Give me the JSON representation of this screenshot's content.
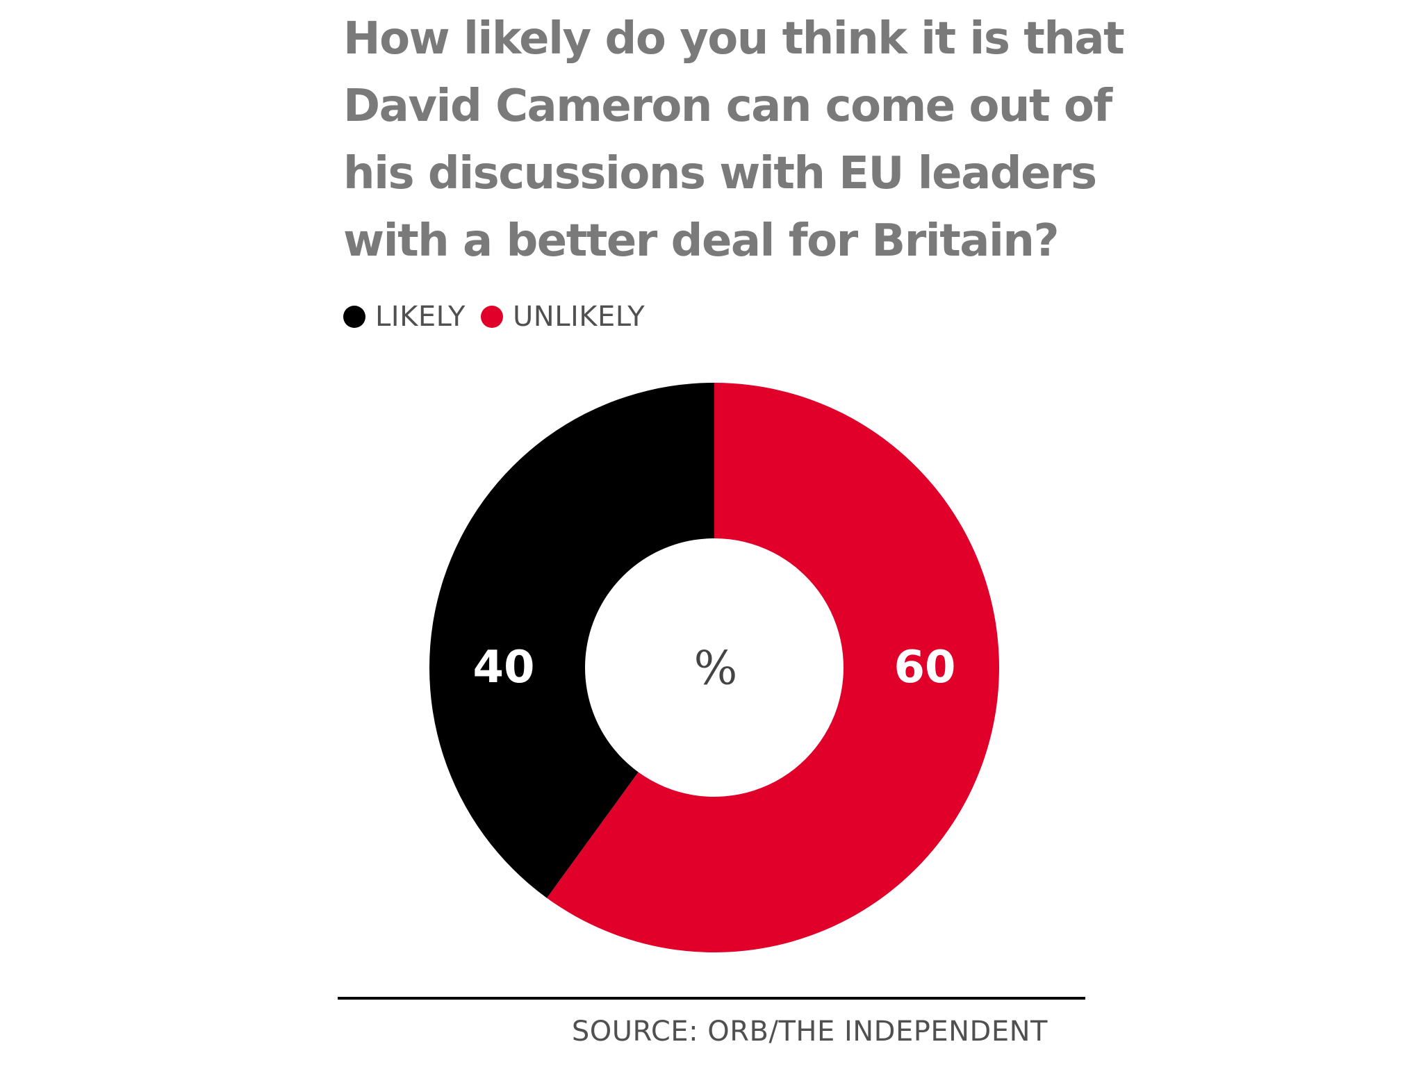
{
  "title_lines": [
    "How likely do you think it is that",
    "David Cameron can come out of",
    "his discussions with EU leaders",
    "with a better deal for Britain?"
  ],
  "source": "SOURCE: ORB/THE INDEPENDENT",
  "colors": {
    "likely": "#000000",
    "unlikely": "#e0002a",
    "title": "#7a7a7a",
    "text": "#505050"
  },
  "chart_data": {
    "type": "pie",
    "style": "donut",
    "title": "How likely do you think it is that David Cameron can come out of his discussions with EU leaders with a better deal for Britain?",
    "unit_label": "%",
    "legend_placement": "top-left",
    "categories": [
      "LIKELY",
      "UNLIKELY"
    ],
    "values": [
      40,
      60
    ],
    "data_labels": [
      "40",
      "60"
    ]
  }
}
